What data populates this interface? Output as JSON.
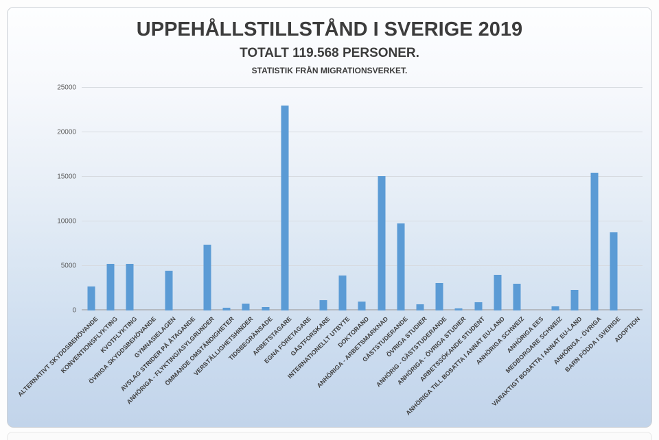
{
  "chart_data": {
    "type": "bar",
    "title": "UPPEHÅLLSTILLSTÅND I SVERIGE 2019",
    "subtitle": "TOTALT 119.568 PERSONER.",
    "source_note": "STATISTIK FRÅN MIGRATIONSVERKET.",
    "categories": [
      "ALTERNATIVT SKYDDSBEHÖVANDE",
      "KONVENTIONSFLYKTING",
      "KVOTFLYKTING",
      "ÖVRIGA SKYDDSBEHÖVANDE",
      "GYMNASIELAGEN",
      "AVSLAG STRIDER PÅ ÅTAGANDE",
      "ANHÖRIGA - FLYKTING/ASYLGRUNDER",
      "ÖMMANDE OMSTÄNDIGHETER",
      "VERSTÄLLIGHETSHINDER",
      "TIDSBEGRÄNSADE",
      "ARBETSTAGARE",
      "EGNA FÖRETAGARE",
      "GÄSTFORSKARE",
      "INTERNATIONELLT UTBYTE",
      "DOKTORAND",
      "ANHÖRIGA - ARBETSMARKNAD",
      "GÄSTSTUDERANDE",
      "ÖVRIGA STUDIER",
      "ANHÖRIG - GÄSTSTUDERANDE",
      "ANHÖRIGA - ÖVRIGA STUDIER",
      "ARBETSSÖKANDE STUDENT",
      "ANHÖRIGA TILL BOSATTA I ANNAT EU-LAND",
      "ANHÖRIGA SCHWEIZ",
      "ANHÖRIGA EES",
      "MEDBORGARE SCHWEIZ",
      "VARAKTIGT BOSATTA I ANNAT EU-LAND",
      "ANHÖRIGA - ÖVRIGA",
      "BARN FÖDDA I SVERIGE",
      "ADOPTION"
    ],
    "values": [
      2700,
      5250,
      5250,
      0,
      4500,
      0,
      7350,
      300,
      750,
      400,
      23000,
      0,
      1150,
      3900,
      1000,
      15100,
      9750,
      700,
      3100,
      200,
      900,
      4000,
      3000,
      0,
      500,
      2300,
      15500,
      8800,
      0
    ],
    "xlabel": "",
    "ylabel": "",
    "ylim": [
      0,
      25000
    ],
    "y_ticks": [
      0,
      5000,
      10000,
      15000,
      20000,
      25000
    ],
    "grid": true,
    "legend": false,
    "bar_color": "#5b9bd5"
  }
}
